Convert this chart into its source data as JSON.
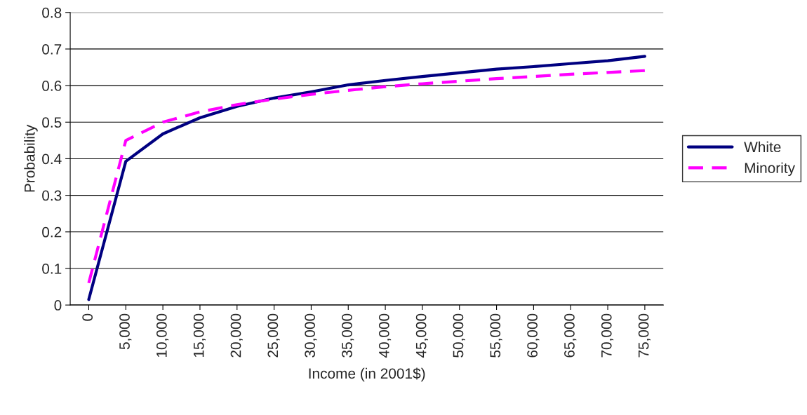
{
  "chart_data": {
    "type": "line",
    "xlabel": "Income (in 2001$)",
    "ylabel": "Probability",
    "categories": [
      "0",
      "5,000",
      "10,000",
      "15,000",
      "20,000",
      "25,000",
      "30,000",
      "35,000",
      "40,000",
      "45,000",
      "50,000",
      "55,000",
      "60,000",
      "65,000",
      "70,000",
      "75,000"
    ],
    "series": [
      {
        "name": "White",
        "color": "#000080",
        "line_style": "solid",
        "values": [
          0.015,
          0.393,
          0.468,
          0.512,
          0.543,
          0.566,
          0.583,
          0.602,
          0.614,
          0.625,
          0.635,
          0.645,
          0.652,
          0.66,
          0.668,
          0.68
        ]
      },
      {
        "name": "Minority",
        "color": "#ff00ff",
        "line_style": "dashed",
        "values": [
          0.06,
          0.45,
          0.5,
          0.528,
          0.548,
          0.563,
          0.576,
          0.587,
          0.597,
          0.605,
          0.612,
          0.619,
          0.625,
          0.631,
          0.636,
          0.641
        ]
      }
    ],
    "ylim": [
      0,
      0.8
    ],
    "yticks": [
      0,
      0.1,
      0.2,
      0.3,
      0.4,
      0.5,
      0.6,
      0.7,
      0.8
    ],
    "grid": "y",
    "legend": "right",
    "marker": "none"
  }
}
